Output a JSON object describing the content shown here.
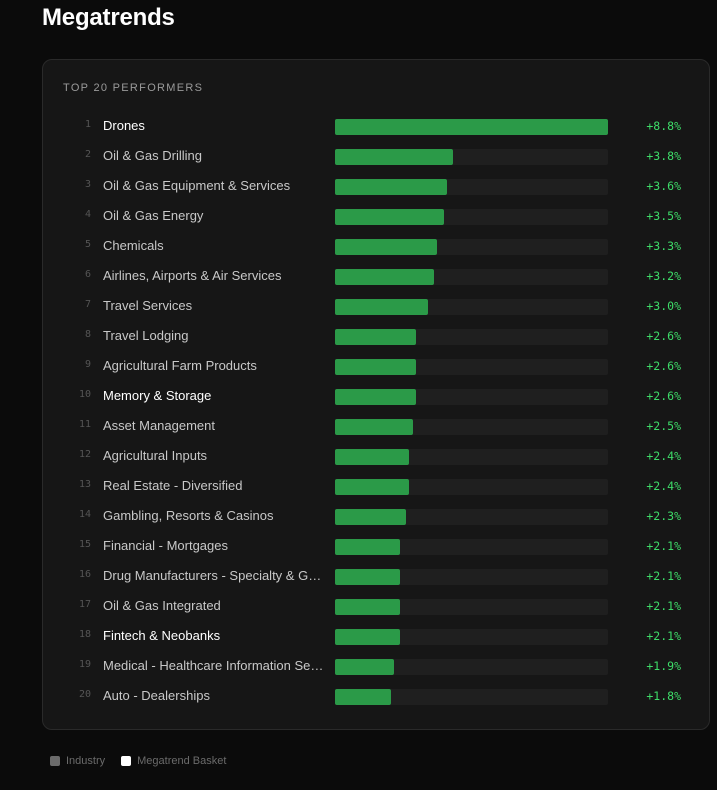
{
  "page": {
    "title": "Megatrends"
  },
  "panel": {
    "heading": "TOP 20 PERFORMERS"
  },
  "colors": {
    "bar": "#2b9a48",
    "value_text": "#3ddc68",
    "industry_swatch": "#6b6b6b",
    "basket_swatch": "#ffffff"
  },
  "chart_data": {
    "type": "bar",
    "title": "TOP 20 PERFORMERS",
    "orientation": "horizontal",
    "xlim": [
      0,
      8.8
    ],
    "categories": [
      "Drones",
      "Oil & Gas Drilling",
      "Oil & Gas Equipment & Services",
      "Oil & Gas Energy",
      "Chemicals",
      "Airlines, Airports & Air Services",
      "Travel Services",
      "Travel Lodging",
      "Agricultural Farm Products",
      "Memory & Storage",
      "Asset Management",
      "Agricultural Inputs",
      "Real Estate - Diversified",
      "Gambling, Resorts & Casinos",
      "Financial - Mortgages",
      "Drug Manufacturers - Specialty & Generic",
      "Oil & Gas Integrated",
      "Fintech & Neobanks",
      "Medical - Healthcare Information Services",
      "Auto - Dealerships"
    ],
    "ranks": [
      "1",
      "2",
      "3",
      "4",
      "5",
      "6",
      "7",
      "8",
      "9",
      "10",
      "11",
      "12",
      "13",
      "14",
      "15",
      "16",
      "17",
      "18",
      "19",
      "20"
    ],
    "values": [
      8.8,
      3.8,
      3.6,
      3.5,
      3.3,
      3.2,
      3.0,
      2.6,
      2.6,
      2.6,
      2.5,
      2.4,
      2.4,
      2.3,
      2.1,
      2.1,
      2.1,
      2.1,
      1.9,
      1.8
    ],
    "labels": [
      "+8.8%",
      "+3.8%",
      "+3.6%",
      "+3.5%",
      "+3.3%",
      "+3.2%",
      "+3.0%",
      "+2.6%",
      "+2.6%",
      "+2.6%",
      "+2.5%",
      "+2.4%",
      "+2.4%",
      "+2.3%",
      "+2.1%",
      "+2.1%",
      "+2.1%",
      "+2.1%",
      "+1.9%",
      "+1.8%"
    ],
    "kinds": [
      "basket",
      "industry",
      "industry",
      "industry",
      "industry",
      "industry",
      "industry",
      "industry",
      "industry",
      "basket",
      "industry",
      "industry",
      "industry",
      "industry",
      "industry",
      "industry",
      "industry",
      "basket",
      "industry",
      "industry"
    ],
    "legend": [
      {
        "label": "Industry",
        "kind": "industry"
      },
      {
        "label": "Megatrend Basket",
        "kind": "basket"
      }
    ]
  }
}
